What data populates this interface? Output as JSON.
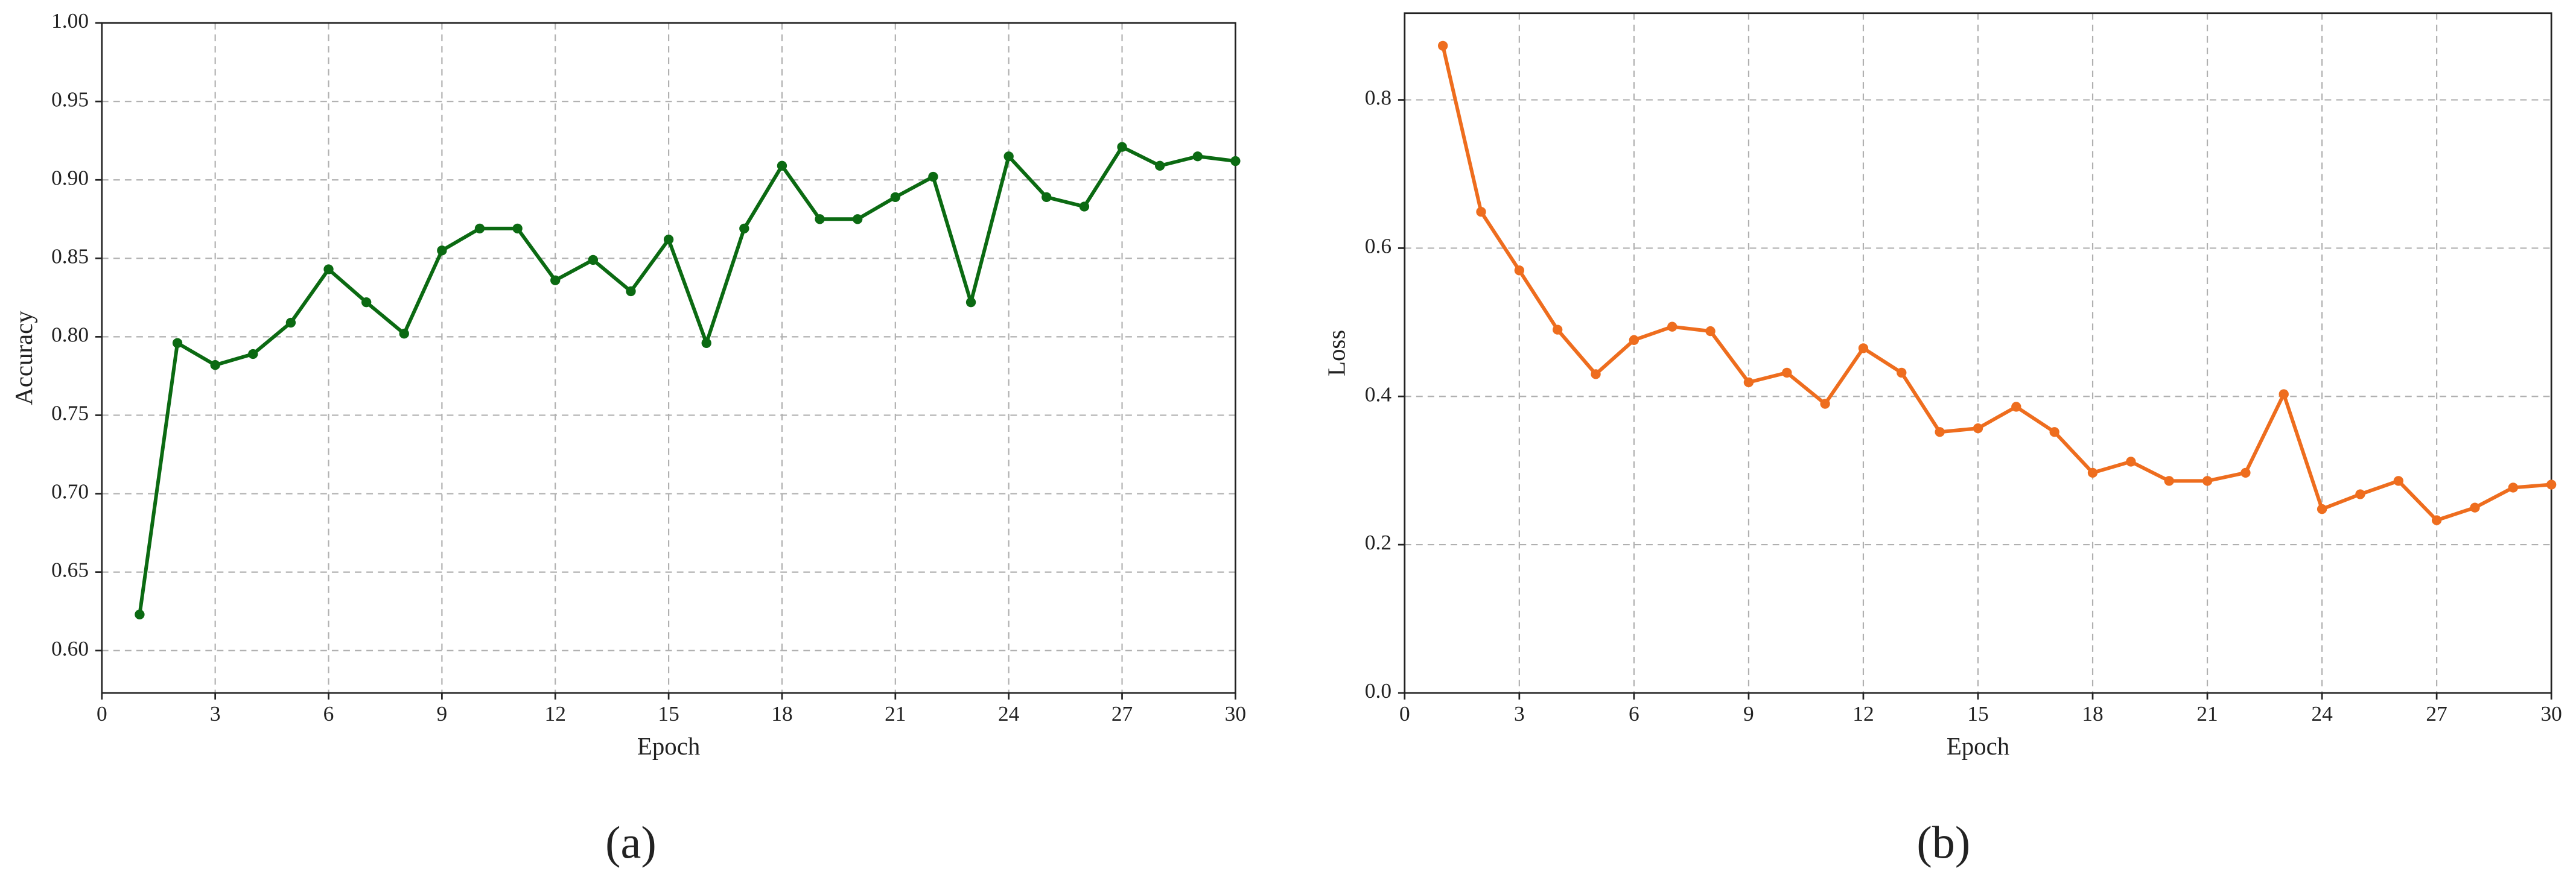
{
  "chart_data": [
    {
      "type": "line",
      "panel_label": "(a)",
      "xlabel": "Epoch",
      "ylabel": "Accuracy",
      "xlim": [
        0,
        30
      ],
      "xticks": [
        0,
        3,
        6,
        9,
        12,
        15,
        18,
        21,
        24,
        27,
        30
      ],
      "ylim": [
        0.573,
        1.0
      ],
      "yticks": [
        {
          "value": 0.6,
          "label": "0.60"
        },
        {
          "value": 0.65,
          "label": "0.65"
        },
        {
          "value": 0.7,
          "label": "0.70"
        },
        {
          "value": 0.75,
          "label": "0.75"
        },
        {
          "value": 0.8,
          "label": "0.80"
        },
        {
          "value": 0.85,
          "label": "0.85"
        },
        {
          "value": 0.9,
          "label": "0.90"
        },
        {
          "value": 0.95,
          "label": "0.95"
        },
        {
          "value": 1.0,
          "label": "1.00"
        }
      ],
      "grid": true,
      "x": [
        1,
        2,
        3,
        4,
        5,
        6,
        7,
        8,
        9,
        10,
        11,
        12,
        13,
        14,
        15,
        16,
        17,
        18,
        19,
        20,
        21,
        22,
        23,
        24,
        25,
        26,
        27,
        28,
        29,
        30
      ],
      "series": [
        {
          "color": "#0b6a12",
          "values": [
            0.623,
            0.796,
            0.782,
            0.789,
            0.809,
            0.843,
            0.822,
            0.802,
            0.855,
            0.869,
            0.869,
            0.836,
            0.849,
            0.829,
            0.862,
            0.796,
            0.869,
            0.909,
            0.875,
            0.875,
            0.889,
            0.902,
            0.822,
            0.915,
            0.889,
            0.883,
            0.921,
            0.909,
            0.915,
            0.912
          ]
        }
      ]
    },
    {
      "type": "line",
      "panel_label": "(b)",
      "xlabel": "Epoch",
      "ylabel": "Loss",
      "xlim": [
        0,
        30
      ],
      "xticks": [
        0,
        3,
        6,
        9,
        12,
        15,
        18,
        21,
        24,
        27,
        30
      ],
      "ylim": [
        0,
        0.917
      ],
      "yticks": [
        {
          "value": 0,
          "label": "0.0"
        },
        0.2,
        0.4,
        0.6,
        0.8
      ],
      "grid": true,
      "x": [
        1,
        2,
        3,
        4,
        5,
        6,
        7,
        8,
        9,
        10,
        11,
        12,
        13,
        14,
        15,
        16,
        17,
        18,
        19,
        20,
        21,
        22,
        23,
        24,
        25,
        26,
        27,
        28,
        29,
        30
      ],
      "series": [
        {
          "color": "#ee6d1e",
          "values": [
            0.873,
            0.649,
            0.57,
            0.49,
            0.43,
            0.476,
            0.494,
            0.488,
            0.419,
            0.432,
            0.39,
            0.465,
            0.432,
            0.352,
            0.357,
            0.386,
            0.352,
            0.297,
            0.312,
            0.286,
            0.286,
            0.297,
            0.403,
            0.248,
            0.268,
            0.286,
            0.233,
            0.25,
            0.277,
            0.281
          ]
        }
      ]
    }
  ]
}
